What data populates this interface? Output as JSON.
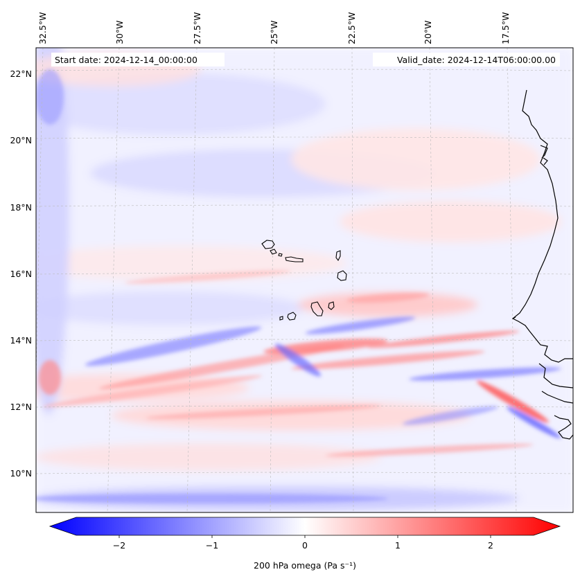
{
  "map": {
    "start_date_label": "Start date: 2024-12-14_00:00:00",
    "valid_date_label": "Valid_date: 2024-12-14T06:00:00.00",
    "lon_labels": [
      "32.5°W",
      "30°W",
      "27.5°W",
      "25°W",
      "22.5°W",
      "20°W",
      "17.5°W"
    ],
    "lat_labels": [
      "22°N",
      "20°N",
      "18°N",
      "16°N",
      "14°N",
      "12°N",
      "10°N"
    ]
  },
  "colorbar": {
    "ticks": [
      "−2",
      "−1",
      "0",
      "1",
      "2"
    ],
    "label": "200 hPa omega (Pa s⁻¹)",
    "range": [
      -2.6,
      2.6
    ],
    "colormap": "bwr",
    "colors": {
      "low": "#0000ff",
      "mid": "#ffffff",
      "high": "#ff0000"
    }
  }
}
